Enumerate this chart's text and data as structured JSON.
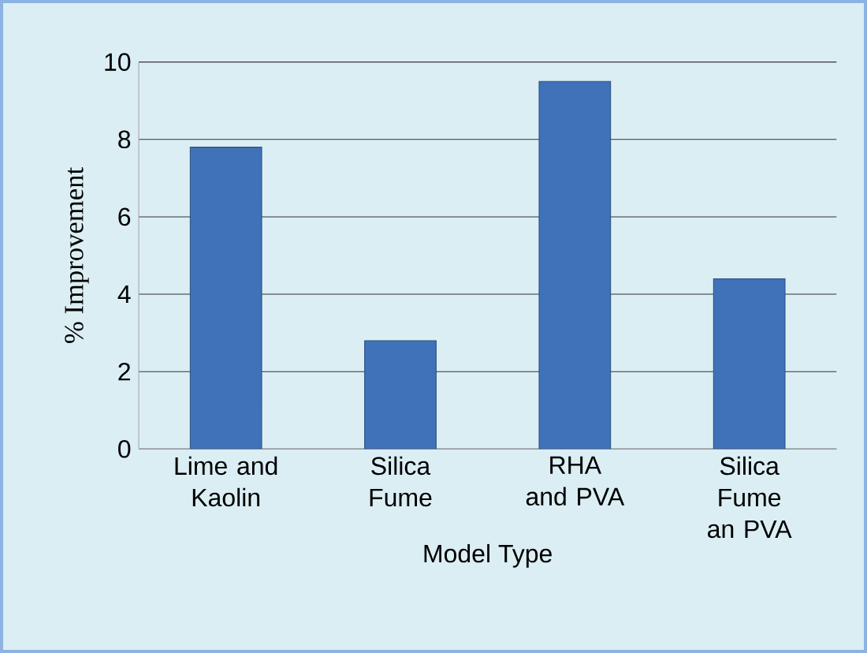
{
  "chart_data": {
    "type": "bar",
    "xlabel": "Model Type",
    "ylabel": "% Improvement",
    "categories": [
      "Lime and Kaolin",
      "Silica Fume",
      "RHA and PVA",
      "Silica Fume an PVA"
    ],
    "values": [
      7.8,
      2.8,
      9.5,
      4.4
    ],
    "color": "#3f72b8",
    "ylim": [
      0,
      10
    ],
    "yticks": [
      0,
      2,
      4,
      6,
      8,
      10
    ],
    "grid": "y"
  }
}
